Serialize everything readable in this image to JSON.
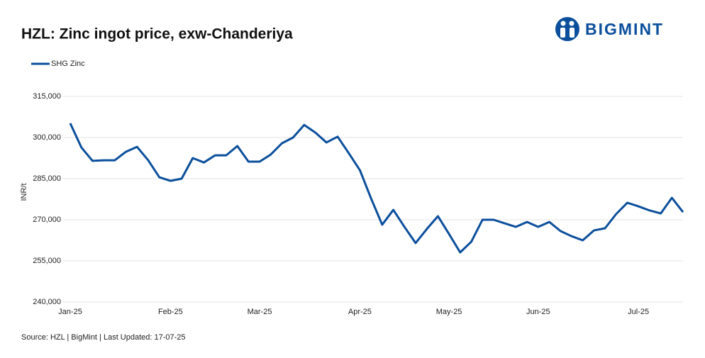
{
  "chart_data": {
    "type": "line",
    "title": "HZL: Zinc ingot price, exw-Chanderiya",
    "logo": "BIGMINT",
    "y_label": "INR/t",
    "source": "Source: HZL | BigMint | Last Updated: 17-07-25",
    "categories": [
      "Jan-25",
      null,
      null,
      null,
      null,
      null,
      null,
      null,
      null,
      "Feb-25",
      null,
      null,
      null,
      null,
      null,
      null,
      null,
      "Mar-25",
      null,
      null,
      null,
      null,
      null,
      null,
      null,
      null,
      "Apr-25",
      null,
      null,
      null,
      null,
      null,
      null,
      null,
      "May-25",
      null,
      null,
      null,
      null,
      null,
      null,
      null,
      "Jun-25",
      null,
      null,
      null,
      null,
      null,
      null,
      null,
      null,
      "Jul-25",
      null,
      null,
      null,
      null
    ],
    "series": [
      {
        "name": "SHG Zinc",
        "color": "#0b4f9c",
        "values": [
          305200,
          296400,
          291500,
          291700,
          291700,
          294800,
          296600,
          291700,
          285500,
          284200,
          285000,
          292500,
          290900,
          293500,
          293500,
          296900,
          291200,
          291200,
          293800,
          297900,
          300000,
          304600,
          301800,
          298200,
          300300,
          294300,
          288100,
          277800,
          268200,
          273600,
          267400,
          261500,
          266600,
          271300,
          264800,
          258100,
          262000,
          270000,
          270000,
          268700,
          267400,
          269200,
          267400,
          269200,
          265900,
          264000,
          262500,
          266100,
          266900,
          272100,
          276200,
          274900,
          273400,
          272300,
          278000,
          272800
        ]
      }
    ],
    "ylim": [
      240000,
      315000
    ],
    "yticks": [
      {
        "value": 240000,
        "label": "240,000"
      },
      {
        "value": 255000,
        "label": "255,000"
      },
      {
        "value": 270000,
        "label": "270,000"
      },
      {
        "value": 285000,
        "label": "285,000"
      },
      {
        "value": 300000,
        "label": "300,000"
      },
      {
        "value": 315000,
        "label": "315,000"
      }
    ],
    "grid": true
  }
}
